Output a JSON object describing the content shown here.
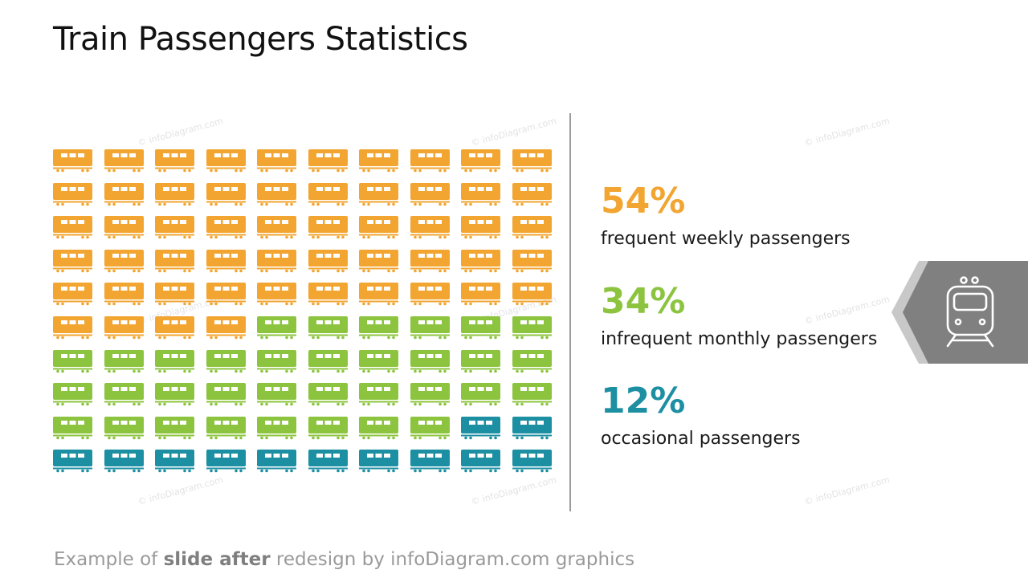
{
  "title": "Train Passengers Statistics",
  "colors": {
    "orange": "#F2A531",
    "green": "#8CC43F",
    "teal": "#1C8FA3",
    "badge": "#808080",
    "badge_shadow": "#c8c8c8"
  },
  "chart_data": {
    "type": "table",
    "grid": {
      "rows": 10,
      "columns": 10,
      "icon": "train-car-icon"
    },
    "segments": [
      {
        "value": "54%",
        "count": 54,
        "label": "frequent weekly passengers",
        "color": "#F2A531"
      },
      {
        "value": "34%",
        "count": 34,
        "label": "infrequent monthly passengers",
        "color": "#8CC43F"
      },
      {
        "value": "12%",
        "count": 12,
        "label": "occasional passengers",
        "color": "#1C8FA3"
      }
    ]
  },
  "badge_icon": "train-front-icon",
  "watermark": "© infoDiagram.com",
  "footer": {
    "prefix": "Example of ",
    "bold": "slide after",
    "suffix": " redesign by infoDiagram.com graphics"
  }
}
